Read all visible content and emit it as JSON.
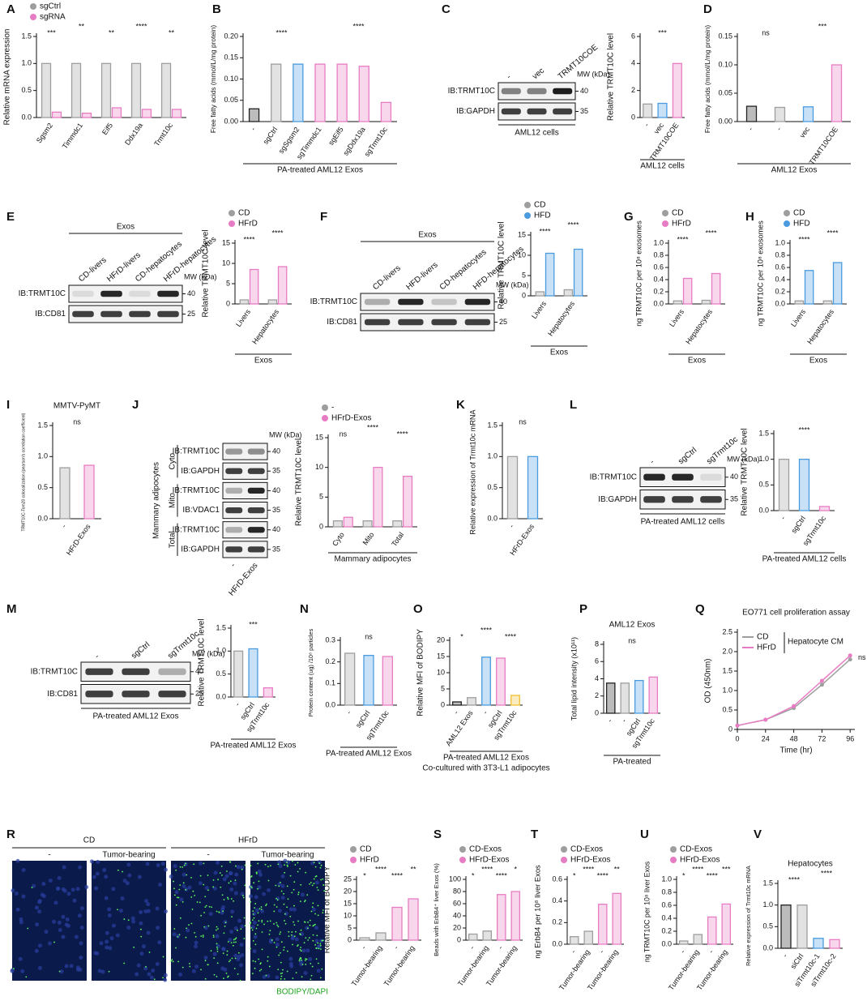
{
  "chart_data": [
    {
      "type": "bar",
      "panel": "A",
      "ylabel": "Relative mRNA expression",
      "categories": [
        "Sgsm2",
        "Timmdc1",
        "Eif5",
        "Ddx19a",
        "Trmt10c"
      ],
      "series": [
        {
          "name": "sgCtrl",
          "color": "#9e9e9e",
          "values": [
            1,
            1,
            1,
            1,
            1
          ]
        },
        {
          "name": "sgRNA",
          "color": "#e87cc4",
          "values": [
            0.1,
            0.08,
            0.18,
            0.15,
            0.15
          ]
        }
      ],
      "ylim": [
        0,
        1.5
      ],
      "yticks": [
        {
          "value": 0,
          "label": "0.0"
        },
        0.5,
        {
          "value": 1,
          "label": "1.0"
        },
        1.5
      ],
      "annotations": [
        "***",
        "**",
        "**",
        "****",
        "**"
      ]
    },
    {
      "type": "bar",
      "panel": "B",
      "ylabel": "Free fatty acids (mmol/L/mg protein)",
      "categories": [
        "-",
        "sgCtrl",
        "sgSgsm2",
        "sgTimmdc1",
        "sgEif5",
        "sgDdx19a",
        "sgTrmt10c"
      ],
      "series": [
        {
          "colors": [
            "#222222",
            "#9e9e9e",
            "#4a9be0",
            "#e87cc4",
            "#e87cc4",
            "#e87cc4",
            "#e87cc4"
          ],
          "values": [
            0.03,
            0.135,
            0.135,
            0.135,
            0.135,
            0.13,
            0.045
          ]
        }
      ],
      "ylim": [
        0,
        0.2
      ],
      "yticks": [
        {
          "value": 0,
          "label": "0.00"
        },
        0.05,
        {
          "value": 0.1,
          "label": "0.10"
        },
        0.15,
        {
          "value": 0.2,
          "label": "0.20"
        }
      ],
      "annotations": [
        "****",
        "****"
      ],
      "group_label": "PA-treated AML12 Exos"
    },
    {
      "type": "bar",
      "panel": "C",
      "ylabel": "Relative TRMT10C level",
      "categories": [
        "-",
        "vec",
        "TRMT10COE"
      ],
      "series": [
        {
          "colors": [
            "#9e9e9e",
            "#4a9be0",
            "#e87cc4"
          ],
          "values": [
            1,
            1.05,
            4
          ]
        }
      ],
      "ylim": [
        0,
        6
      ],
      "yticks": [
        0,
        2,
        4,
        6
      ],
      "annotations": [
        "***"
      ],
      "group_label": "AML12 cells"
    },
    {
      "type": "bar",
      "panel": "D",
      "ylabel": "Free fatty acids (mmol/L/mg protein)",
      "categories": [
        "-",
        "-",
        "vec",
        "TRMT10COE"
      ],
      "series": [
        {
          "colors": [
            "#222222",
            "#9e9e9e",
            "#4a9be0",
            "#e87cc4"
          ],
          "values": [
            0.027,
            0.025,
            0.026,
            0.1
          ]
        }
      ],
      "ylim": [
        0,
        0.15
      ],
      "yticks": [
        {
          "value": 0,
          "label": "0.00"
        },
        0.05,
        {
          "value": 0.1,
          "label": "0.10"
        },
        0.15
      ],
      "annotations": [
        "ns",
        "***"
      ],
      "group_label": "AML12 Exos"
    },
    {
      "type": "bar",
      "panel": "E",
      "ylabel": "Relative TRMT10C level",
      "categories": [
        "Livers",
        "Hepatocytes"
      ],
      "series": [
        {
          "name": "CD",
          "color": "#9e9e9e",
          "values": [
            1,
            1
          ]
        },
        {
          "name": "HFrD",
          "color": "#e87cc4",
          "values": [
            8.5,
            9.2
          ]
        }
      ],
      "ylim": [
        0,
        15
      ],
      "yticks": [
        0,
        5,
        10,
        15
      ],
      "annotations": [
        "****",
        "****"
      ],
      "group_label": "Exos"
    },
    {
      "type": "bar",
      "panel": "F",
      "ylabel": "Relative TRMT10C level",
      "categories": [
        "Livers",
        "Hepatocytes"
      ],
      "series": [
        {
          "name": "CD",
          "color": "#9e9e9e",
          "values": [
            1,
            1.5
          ]
        },
        {
          "name": "HFD",
          "color": "#4a9be0",
          "values": [
            10.5,
            11.5
          ]
        }
      ],
      "ylim": [
        0,
        15
      ],
      "yticks": [
        0,
        5,
        10,
        15
      ],
      "annotations": [
        "****",
        "****"
      ],
      "group_label": "Exos"
    },
    {
      "type": "bar",
      "panel": "G",
      "ylabel": "ng TRMT10C per 10⁸ exosomes",
      "categories": [
        "Livers",
        "Hepatocytes"
      ],
      "series": [
        {
          "name": "CD",
          "color": "#9e9e9e",
          "values": [
            0.05,
            0.06
          ]
        },
        {
          "name": "HFrD",
          "color": "#e87cc4",
          "values": [
            0.42,
            0.5
          ]
        }
      ],
      "ylim": [
        0,
        1
      ],
      "yticks": [
        {
          "value": 0,
          "label": "0.0"
        },
        0.2,
        0.4,
        0.6,
        0.8,
        {
          "value": 1,
          "label": "1.0"
        }
      ],
      "annotations": [
        "****",
        "****"
      ],
      "group_label": "Exos"
    },
    {
      "type": "bar",
      "panel": "H",
      "ylabel": "ng TRMT10C per 10⁸ exosomes",
      "categories": [
        "Livers",
        "Hepatocytes"
      ],
      "series": [
        {
          "name": "CD",
          "color": "#9e9e9e",
          "values": [
            0.05,
            0.05
          ]
        },
        {
          "name": "HFD",
          "color": "#4a9be0",
          "values": [
            0.55,
            0.68
          ]
        }
      ],
      "ylim": [
        0,
        1
      ],
      "yticks": [
        {
          "value": 0,
          "label": "0.0"
        },
        0.2,
        0.4,
        0.6,
        0.8,
        {
          "value": 1,
          "label": "1.0"
        }
      ],
      "annotations": [
        "****",
        "****"
      ],
      "group_label": "Exos"
    },
    {
      "type": "bar",
      "panel": "I",
      "title": "MMTV-PyMT",
      "ylabel": "TRMT10C-Tom20 colocalization (pearson's correlation coefficient)",
      "categories": [
        "-",
        "HFrD-Exos"
      ],
      "series": [
        {
          "colors": [
            "#9e9e9e",
            "#e87cc4"
          ],
          "values": [
            0.82,
            0.86
          ]
        }
      ],
      "ylim": [
        0,
        1.5
      ],
      "yticks": [
        {
          "value": 0,
          "label": "0.0"
        },
        0.5,
        {
          "value": 1,
          "label": "1.0"
        },
        1.5
      ],
      "annotations": [
        "ns"
      ]
    },
    {
      "type": "bar",
      "panel": "J",
      "ylabel": "Relative TRMT10C level",
      "categories": [
        "Cyto",
        "Mito",
        "Total"
      ],
      "series": [
        {
          "name": "-",
          "color": "#9e9e9e",
          "values": [
            1,
            1,
            1
          ]
        },
        {
          "name": "HFrD-Exos",
          "color": "#e87cc4",
          "values": [
            1.6,
            10,
            8.5
          ]
        }
      ],
      "ylim": [
        0,
        15
      ],
      "yticks": [
        0,
        5,
        10,
        15
      ],
      "annotations": [
        "ns",
        "****",
        "****"
      ],
      "group_label": "Mammary adipocytes"
    },
    {
      "type": "bar",
      "panel": "K",
      "ylabel": "Relative expression of Trmt10c mRNA",
      "categories": [
        "-",
        "HFrD-Exos"
      ],
      "series": [
        {
          "colors": [
            "#9e9e9e",
            "#4a9be0"
          ],
          "values": [
            1,
            1
          ]
        }
      ],
      "ylim": [
        0,
        1.5
      ],
      "yticks": [
        {
          "value": 0,
          "label": "0.0"
        },
        0.5,
        {
          "value": 1,
          "label": "1.0"
        },
        1.5
      ],
      "annotations": [
        "ns"
      ]
    },
    {
      "type": "bar",
      "panel": "L",
      "ylabel": "Relative TRMT10C level",
      "categories": [
        "-",
        "sgCtrl",
        "sgTrmt10c"
      ],
      "series": [
        {
          "colors": [
            "#9e9e9e",
            "#4a9be0",
            "#e87cc4"
          ],
          "values": [
            1,
            1,
            0.08
          ]
        }
      ],
      "ylim": [
        0,
        1.5
      ],
      "yticks": [
        {
          "value": 0,
          "label": "0.0"
        },
        0.5,
        {
          "value": 1,
          "label": "1.0"
        },
        1.5
      ],
      "annotations": [
        "****"
      ],
      "group_label": "PA-treated AML12 cells"
    },
    {
      "type": "bar",
      "panel": "M",
      "ylabel": "Relative TRMT10C level",
      "categories": [
        "-",
        "sgCtrl",
        "sgTrmt10c"
      ],
      "series": [
        {
          "colors": [
            "#9e9e9e",
            "#4a9be0",
            "#e87cc4"
          ],
          "values": [
            1,
            1.05,
            0.2
          ]
        }
      ],
      "ylim": [
        0,
        1.5
      ],
      "yticks": [
        {
          "value": 0,
          "label": "0.0"
        },
        0.5,
        {
          "value": 1,
          "label": "1.0"
        },
        1.5
      ],
      "annotations": [
        "***"
      ],
      "group_label": "PA-treated AML12 Exos"
    },
    {
      "type": "bar",
      "panel": "N",
      "ylabel": "Protein content (ug) /10⁸ particles",
      "categories": [
        "-",
        "sgCtrl",
        "sgTrmt10c"
      ],
      "series": [
        {
          "colors": [
            "#9e9e9e",
            "#4a9be0",
            "#e87cc4"
          ],
          "values": [
            0.24,
            0.23,
            0.225
          ]
        }
      ],
      "ylim": [
        0,
        0.3
      ],
      "yticks": [
        {
          "value": 0,
          "label": "0.0"
        },
        0.1,
        0.2,
        0.3
      ],
      "annotations": [
        "ns"
      ],
      "group_label": "PA-treated AML12 Exos"
    },
    {
      "type": "bar",
      "panel": "O",
      "ylabel": "Relative MFI of BODIPY",
      "categories": [
        "-",
        "AML12 Exos",
        "-",
        "sgCtrl",
        "sgTrmt10c"
      ],
      "series": [
        {
          "colors": [
            "#222222",
            "#9e9e9e",
            "#4a9be0",
            "#e87cc4",
            "#f0c030"
          ],
          "values": [
            1,
            2.3,
            14.8,
            14.5,
            3
          ]
        }
      ],
      "ylim": [
        0,
        20
      ],
      "yticks": [
        0,
        5,
        10,
        15,
        20
      ],
      "annotations": [
        "*",
        "****",
        "****"
      ],
      "group_label": "PA-treated AML12 Exos",
      "footnote": "Co-cultured with 3T3-L1 adipocytes"
    },
    {
      "type": "bar",
      "panel": "P",
      "title": "AML12 Exos",
      "ylabel": "Total lipid intensity (x10¹¹)",
      "categories": [
        "-",
        "-",
        "sgCtrl",
        "sgTrmt10c"
      ],
      "series": [
        {
          "colors": [
            "#222222",
            "#9e9e9e",
            "#4a9be0",
            "#e87cc4"
          ],
          "values": [
            3.5,
            3.5,
            3.8,
            4.2
          ]
        }
      ],
      "ylim": [
        0,
        8
      ],
      "yticks": [
        0,
        2,
        4,
        6,
        8
      ],
      "annotations": [
        "ns"
      ],
      "group_label": "PA-treated"
    },
    {
      "type": "line",
      "panel": "Q",
      "title": "EO771 cell proliferation assay",
      "xlabel": "Time (hr)",
      "ylabel": "OD (450nm)",
      "x": [
        0,
        24,
        48,
        72,
        96
      ],
      "series": [
        {
          "name": "CD",
          "color": "#9e9e9e",
          "values": [
            0.1,
            0.25,
            0.55,
            1.15,
            1.8
          ]
        },
        {
          "name": "HFrD",
          "color": "#e87cc4",
          "values": [
            0.1,
            0.25,
            0.6,
            1.25,
            1.9
          ]
        }
      ],
      "xlim": [
        0,
        100
      ],
      "xticks": [
        0,
        24,
        48,
        72,
        96
      ],
      "ylim": [
        0,
        2.5
      ],
      "yticks": [
        0,
        0.5,
        {
          "value": 1,
          "label": "1.0"
        },
        1.5,
        {
          "value": 2,
          "label": "2.0"
        },
        2.5
      ],
      "legend_note": "Hepatocyte CM",
      "annotations": [
        "ns"
      ]
    },
    {
      "type": "bar",
      "panel": "R",
      "ylabel": "Relative MFI of BODIPY",
      "categories": [
        "-",
        "Tumor-bearing",
        "-",
        "Tumor-bearing"
      ],
      "series": [
        {
          "name": "CD",
          "color": "#9e9e9e",
          "values": [
            1,
            3,
            null,
            null
          ]
        },
        {
          "name": "HFrD",
          "color": "#e87cc4",
          "values": [
            null,
            null,
            13.5,
            17
          ]
        }
      ],
      "ylim": [
        0,
        25
      ],
      "yticks": [
        0,
        5,
        10,
        15,
        20,
        25
      ],
      "annotations": [
        "*",
        "****",
        "****",
        "**"
      ]
    },
    {
      "type": "bar",
      "panel": "S",
      "ylabel": "Beads with ErbB4⁺ liver Exos (%)",
      "categories": [
        "-",
        "Tumor-bearing",
        "-",
        "Tumor-bearing"
      ],
      "series": [
        {
          "name": "CD-Exos",
          "color": "#9e9e9e",
          "values": [
            10,
            15,
            null,
            null
          ]
        },
        {
          "name": "HFrD-Exos",
          "color": "#e87cc4",
          "values": [
            null,
            null,
            75,
            80
          ]
        }
      ],
      "ylim": [
        0,
        100
      ],
      "yticks": [
        0,
        20,
        40,
        60,
        80,
        100
      ],
      "annotations": [
        "*",
        "****",
        "****",
        "*"
      ]
    },
    {
      "type": "bar",
      "panel": "T",
      "ylabel": "ng ErbB4 per 10⁸ liver Exos",
      "categories": [
        "-",
        "Tumor-bearing",
        "-",
        "Tumor-bearing"
      ],
      "series": [
        {
          "name": "CD-Exos",
          "color": "#9e9e9e",
          "values": [
            0.07,
            0.12,
            null,
            null
          ]
        },
        {
          "name": "HFrD-Exos",
          "color": "#e87cc4",
          "values": [
            null,
            null,
            0.37,
            0.47
          ]
        }
      ],
      "ylim": [
        0,
        0.6
      ],
      "yticks": [
        {
          "value": 0,
          "label": "0.0"
        },
        0.2,
        0.4,
        0.6
      ],
      "annotations": [
        "*",
        "****",
        "****",
        "**"
      ]
    },
    {
      "type": "bar",
      "panel": "U",
      "ylabel": "ng TRMT10C per 10⁸ liver Exos",
      "categories": [
        "-",
        "Tumor-bearing",
        "-",
        "Tumor-bearing"
      ],
      "series": [
        {
          "name": "CD-Exos",
          "color": "#9e9e9e",
          "values": [
            0.05,
            0.15,
            null,
            null
          ]
        },
        {
          "name": "HFrD-Exos",
          "color": "#e87cc4",
          "values": [
            null,
            null,
            0.42,
            0.62
          ]
        }
      ],
      "ylim": [
        0,
        1
      ],
      "yticks": [
        {
          "value": 0,
          "label": "0.0"
        },
        0.2,
        0.4,
        0.6,
        0.8,
        {
          "value": 1,
          "label": "1.0"
        }
      ],
      "annotations": [
        "*",
        "****",
        "****",
        "***"
      ]
    },
    {
      "type": "bar",
      "panel": "V",
      "title": "Hepatocytes",
      "ylabel": "Relative expression of Trmt10c mRNA",
      "categories": [
        "-",
        "siCtrl",
        "siTrmt10c-1",
        "siTrmt10c-2"
      ],
      "series": [
        {
          "colors": [
            "#222222",
            "#9e9e9e",
            "#4a9be0",
            "#e87cc4"
          ],
          "values": [
            1,
            1,
            0.23,
            0.2
          ]
        }
      ],
      "ylim": [
        0,
        1.5
      ],
      "yticks": [
        {
          "value": 0,
          "label": "0.0"
        },
        0.5,
        {
          "value": 1,
          "label": "1.0"
        },
        1.5
      ],
      "annotations": [
        "****",
        "****"
      ]
    }
  ],
  "blots": [
    {
      "lanes": [
        "-",
        "vec",
        "TRMT10COE"
      ],
      "rows": [
        "IB:TRMT10C",
        "IB:GAPDH"
      ],
      "mw": [
        "40",
        "35"
      ],
      "mw_title": "MW (kDa)",
      "caption": "AML12 cells"
    },
    {
      "header": "Exos",
      "lanes": [
        "CD-livers",
        "HFrD-livers",
        "CD-hepatocytes",
        "HFrD-hepatocytes"
      ],
      "rows": [
        "IB:TRMT10C",
        "IB:CD81"
      ],
      "mw": [
        "40",
        "25"
      ],
      "mw_title": "MW (kDa)"
    },
    {
      "header": "Exos",
      "lanes": [
        "CD-livers",
        "HFD-livers",
        "CD-hepatocytes",
        "HFD-hepatocytes"
      ],
      "rows": [
        "IB:TRMT10C",
        "IB:CD81"
      ],
      "mw": [
        "40",
        "25"
      ],
      "mw_title": "MW (kDa)"
    },
    {
      "lanes": [
        "-",
        "HFrD-Exos"
      ],
      "rows": [
        "IB:TRMT10C",
        "IB:GAPDH",
        "IB:TRMT10C",
        "IB:VDAC1",
        "IB:TRMT10C",
        "IB:GAPDH"
      ],
      "mw": [
        "40",
        "35",
        "40",
        "35",
        "40",
        "35"
      ],
      "mw_title": "MW (kDa)",
      "groups": [
        "Cyto",
        "Mito",
        "Total"
      ],
      "side": "Mammary adipocytes"
    },
    {
      "lanes": [
        "-",
        "sgCtrl",
        "sgTrmt10c"
      ],
      "rows": [
        "IB:TRMT10C",
        "IB:GAPDH"
      ],
      "mw": [
        "40",
        "35"
      ],
      "mw_title": "MW (kDa)",
      "caption": "PA-treated AML12 cells"
    },
    {
      "lanes": [
        "-",
        "sgCtrl",
        "sgTrmt10c"
      ],
      "rows": [
        "IB:TRMT10C",
        "IB:CD81"
      ],
      "mw": [
        "40",
        "25"
      ],
      "mw_title": "MW (kDa)",
      "caption": "PA-treated AML12 Exos"
    }
  ],
  "images": {
    "groups": [
      "CD",
      "HFrD"
    ],
    "labels": [
      "-",
      "Tumor-bearing",
      "-",
      "Tumor-bearing"
    ],
    "stain": "BODIPY/DAPI"
  }
}
